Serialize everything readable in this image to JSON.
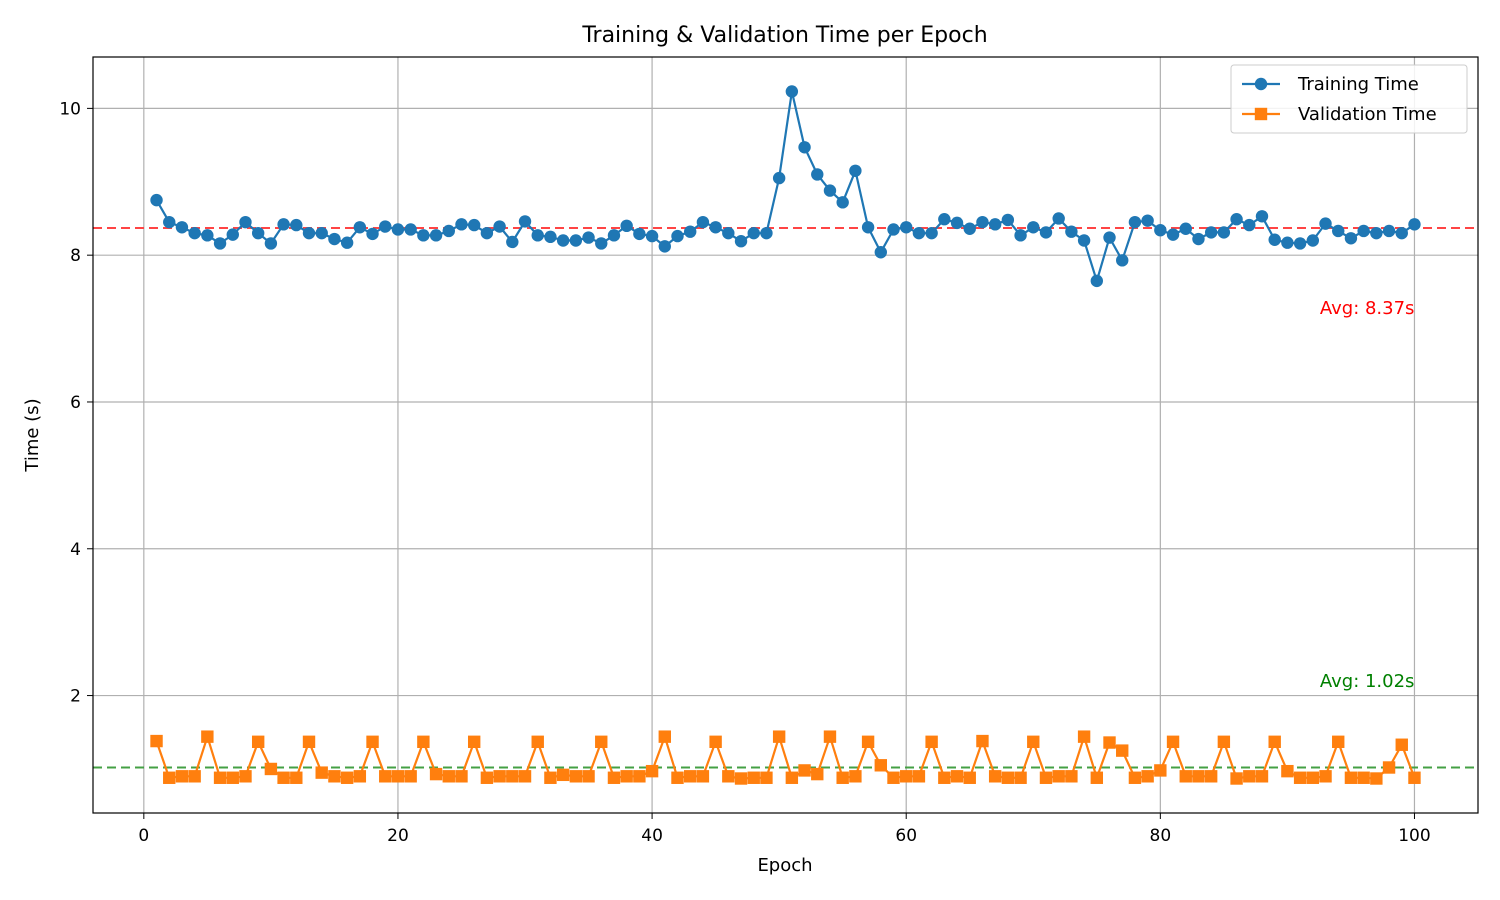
{
  "chart_data": {
    "type": "line",
    "title": "Training & Validation Time per Epoch",
    "xlabel": "Epoch",
    "ylabel": "Time (s)",
    "xlim": [
      -4,
      105
    ],
    "ylim": [
      0.4,
      10.7
    ],
    "xticks": [
      0,
      20,
      40,
      60,
      80,
      100
    ],
    "yticks": [
      2,
      4,
      6,
      8,
      10
    ],
    "grid": true,
    "legend_position": "top-right",
    "x": [
      1,
      2,
      3,
      4,
      5,
      6,
      7,
      8,
      9,
      10,
      11,
      12,
      13,
      14,
      15,
      16,
      17,
      18,
      19,
      20,
      21,
      22,
      23,
      24,
      25,
      26,
      27,
      28,
      29,
      30,
      31,
      32,
      33,
      34,
      35,
      36,
      37,
      38,
      39,
      40,
      41,
      42,
      43,
      44,
      45,
      46,
      47,
      48,
      49,
      50,
      51,
      52,
      53,
      54,
      55,
      56,
      57,
      58,
      59,
      60,
      61,
      62,
      63,
      64,
      65,
      66,
      67,
      68,
      69,
      70,
      71,
      72,
      73,
      74,
      75,
      76,
      77,
      78,
      79,
      80,
      81,
      82,
      83,
      84,
      85,
      86,
      87,
      88,
      89,
      90,
      91,
      92,
      93,
      94,
      95,
      96,
      97,
      98,
      99,
      100
    ],
    "series": [
      {
        "name": "Training Time",
        "color": "#1f77b4",
        "marker": "circle",
        "values": [
          8.75,
          8.45,
          8.38,
          8.3,
          8.27,
          8.16,
          8.28,
          8.45,
          8.3,
          8.16,
          8.42,
          8.41,
          8.3,
          8.3,
          8.22,
          8.17,
          8.38,
          8.29,
          8.39,
          8.35,
          8.35,
          8.27,
          8.27,
          8.33,
          8.42,
          8.41,
          8.3,
          8.39,
          8.18,
          8.46,
          8.27,
          8.25,
          8.2,
          8.2,
          8.24,
          8.16,
          8.27,
          8.4,
          8.29,
          8.26,
          8.12,
          8.26,
          8.32,
          8.45,
          8.38,
          8.3,
          8.19,
          8.3,
          8.3,
          9.05,
          10.23,
          9.47,
          9.1,
          8.88,
          8.72,
          9.15,
          8.38,
          8.04,
          8.35,
          8.38,
          8.3,
          8.3,
          8.49,
          8.44,
          8.36,
          8.45,
          8.42,
          8.48,
          8.27,
          8.38,
          8.31,
          8.5,
          8.32,
          8.2,
          7.65,
          8.24,
          7.93,
          8.45,
          8.47,
          8.34,
          8.28,
          8.36,
          8.22,
          8.31,
          8.31,
          8.49,
          8.41,
          8.53,
          8.21,
          8.17,
          8.16,
          8.2,
          8.43,
          8.33,
          8.23,
          8.33,
          8.3,
          8.33,
          8.3,
          8.42
        ]
      },
      {
        "name": "Validation Time",
        "color": "#ff7f0e",
        "marker": "square",
        "values": [
          1.38,
          0.88,
          0.9,
          0.9,
          1.44,
          0.88,
          0.88,
          0.9,
          1.37,
          1.0,
          0.88,
          0.88,
          1.37,
          0.95,
          0.9,
          0.88,
          0.9,
          1.37,
          0.9,
          0.9,
          0.9,
          1.37,
          0.93,
          0.9,
          0.9,
          1.37,
          0.88,
          0.9,
          0.9,
          0.9,
          1.37,
          0.88,
          0.92,
          0.9,
          0.9,
          1.37,
          0.88,
          0.9,
          0.9,
          0.97,
          1.44,
          0.88,
          0.9,
          0.9,
          1.37,
          0.9,
          0.87,
          0.88,
          0.88,
          1.44,
          0.88,
          0.98,
          0.93,
          1.44,
          0.88,
          0.9,
          1.37,
          1.05,
          0.88,
          0.9,
          0.9,
          1.37,
          0.88,
          0.9,
          0.88,
          1.38,
          0.9,
          0.88,
          0.88,
          1.37,
          0.88,
          0.9,
          0.9,
          1.44,
          0.88,
          1.36,
          1.25,
          0.88,
          0.9,
          0.98,
          1.37,
          0.9,
          0.9,
          0.9,
          1.37,
          0.87,
          0.9,
          0.9,
          1.37,
          0.97,
          0.88,
          0.88,
          0.9,
          1.37,
          0.88,
          0.88,
          0.87,
          1.02,
          1.33,
          0.88
        ]
      }
    ],
    "reference_lines": [
      {
        "name": "Training average",
        "value": 8.37,
        "color": "#ff4444",
        "label": "Avg: 8.37s",
        "label_color": "#ff0000",
        "label_y": 7.2
      },
      {
        "name": "Validation average",
        "value": 1.02,
        "color": "#44a044",
        "label": "Avg: 1.02s",
        "label_color": "#008000",
        "label_y": 2.12
      }
    ]
  }
}
